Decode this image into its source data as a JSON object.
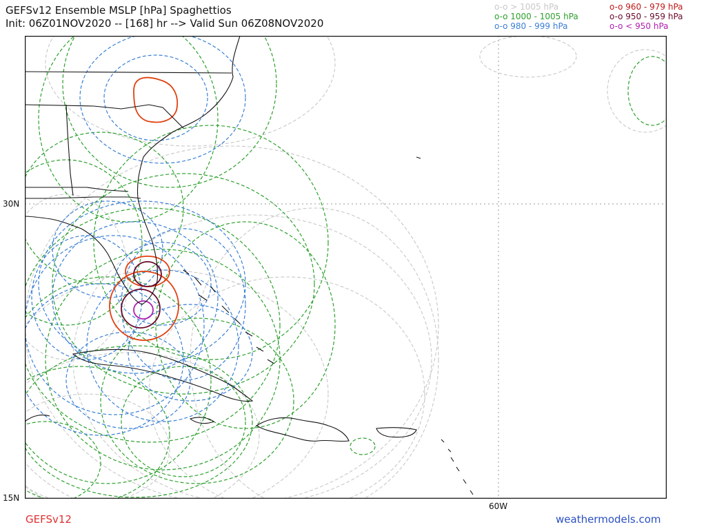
{
  "header": {
    "title": "GEFSv12 Ensemble MSLP [hPa] Spaghettios",
    "subtitle": "Init: 06Z01NOV2020 -- [168] hr --> Valid Sun 06Z08NOV2020"
  },
  "legend": {
    "left": [
      {
        "label": "o-o > 1005 hPa",
        "color": "#c8c8c8"
      },
      {
        "label": "o-o 1000 - 1005 hPa",
        "color": "#2ca02c"
      },
      {
        "label": "o-o 980 - 999 hPa",
        "color": "#3a7fd5"
      }
    ],
    "right": [
      {
        "label": "o-o 960 - 979 hPa",
        "color": "#c01818"
      },
      {
        "label": "o-o 950 - 959 hPa",
        "color": "#6a0a2a"
      },
      {
        "label": "o-o < 950 hPa",
        "color": "#b020b0"
      }
    ]
  },
  "axes": {
    "lat_labels": [
      "30N",
      "15N"
    ],
    "lon_labels": [
      "60W"
    ]
  },
  "footer": {
    "model": "GEFSv12",
    "model_color": "#e03030",
    "site": "weathermodels.com",
    "site_color": "#2a4fc0"
  }
}
